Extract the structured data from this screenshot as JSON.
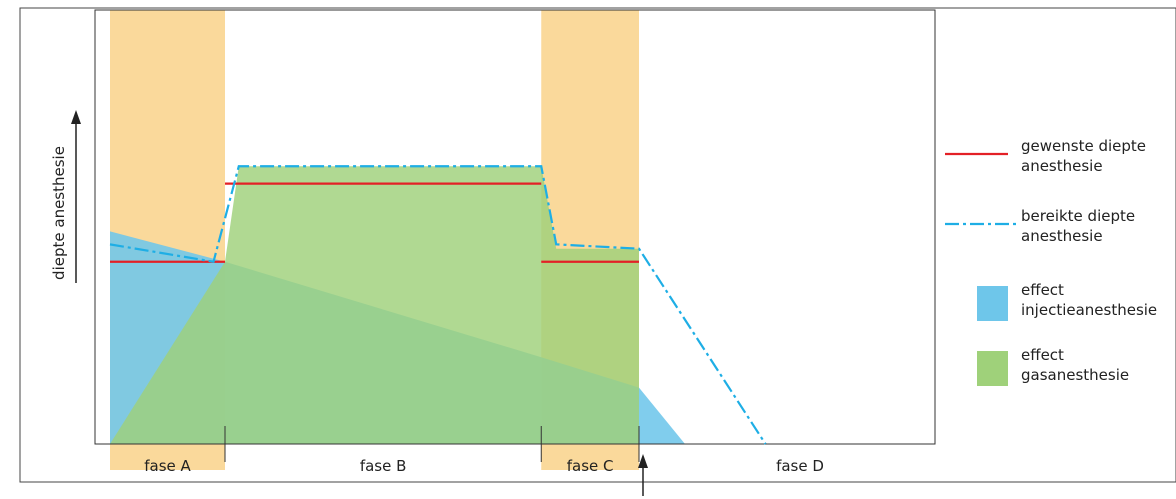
{
  "chart_data": {
    "type": "area",
    "title": "",
    "xlabel": "",
    "ylabel": "diepte anesthesie",
    "phases": [
      {
        "label": "fase A",
        "x0": 0,
        "x1": 1.0,
        "highlighted": true
      },
      {
        "label": "fase B",
        "x0": 1.0,
        "x1": 3.75,
        "highlighted": false
      },
      {
        "label": "fase C",
        "x0": 3.75,
        "x1": 4.6,
        "highlighted": true
      },
      {
        "label": "fase D",
        "x0": 4.6,
        "x1": 7.4,
        "highlighted": false
      }
    ],
    "xlim": [
      0,
      7.4
    ],
    "ylim": [
      0,
      1
    ],
    "series": [
      {
        "name": "effect injectieanesthesie",
        "kind": "area",
        "x": [
          0,
          1.0,
          3.75,
          4.6,
          5.0
        ],
        "y": [
          0.49,
          0.42,
          0.2,
          0.13,
          0
        ]
      },
      {
        "name": "effect gasanesthesie",
        "kind": "area",
        "x": [
          0,
          1.0,
          1.12,
          3.75,
          3.88,
          4.6
        ],
        "y": [
          0,
          0.42,
          0.64,
          0.64,
          0.45,
          0.45
        ]
      },
      {
        "name": "gewenste diepte anesthesie",
        "kind": "step",
        "segments": [
          {
            "x": [
              0,
              1.0
            ],
            "y": 0.42
          },
          {
            "x": [
              1.0,
              3.75
            ],
            "y": 0.6
          },
          {
            "x": [
              3.75,
              4.6
            ],
            "y": 0.42
          }
        ]
      },
      {
        "name": "bereikte diepte anesthesie",
        "kind": "line",
        "dashed": true,
        "x": [
          0,
          0.9,
          1.12,
          3.75,
          3.88,
          4.6,
          5.7
        ],
        "y": [
          0.46,
          0.42,
          0.64,
          0.64,
          0.46,
          0.45,
          0
        ]
      }
    ],
    "legend": {
      "position": "right",
      "items": [
        {
          "label_lines": [
            "gewenste diepte",
            "anesthesie"
          ],
          "swatch": "line",
          "color": "#e32026"
        },
        {
          "label_lines": [
            "bereikte diepte",
            "anesthesie"
          ],
          "swatch": "dash",
          "color": "#1eaee5"
        },
        {
          "label_lines": [
            "effect",
            "injectieanesthesie"
          ],
          "swatch": "box",
          "color": "#6ec6ea"
        },
        {
          "label_lines": [
            "effect",
            "gasanesthesie"
          ],
          "swatch": "box",
          "color": "#9fd17a"
        }
      ]
    },
    "colors": {
      "phase_band": "#fad99b",
      "injection": "#6ec6ea",
      "gas": "#9fd17a",
      "desired": "#e32026",
      "achieved": "#1eaee5"
    },
    "grid": false
  }
}
